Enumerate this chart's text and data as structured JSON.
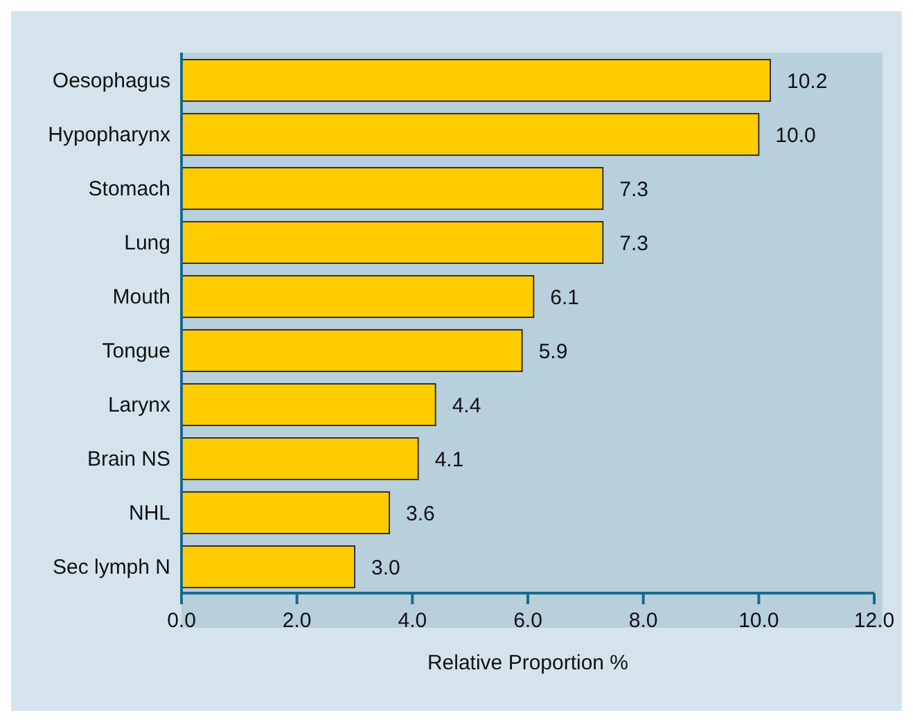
{
  "chart_data": {
    "type": "bar",
    "orientation": "horizontal",
    "xlabel": "Relative Proportion %",
    "categories": [
      "Oesophagus",
      "Hypopharynx",
      "Stomach",
      "Lung",
      "Mouth",
      "Tongue",
      "Larynx",
      "Brain NS",
      "NHL",
      "Sec lymph N"
    ],
    "values": [
      10.2,
      10.0,
      7.3,
      7.3,
      6.1,
      5.9,
      4.4,
      4.1,
      3.6,
      3.0
    ],
    "value_labels": [
      "10.2",
      "10.0",
      "7.3",
      "7.3",
      "6.1",
      "5.9",
      "4.4",
      "4.1",
      "3.6",
      "3.0"
    ],
    "color": "#ffcc00",
    "xlim": [
      0,
      12
    ],
    "xticks": [
      {
        "value": 0,
        "label": "0.0"
      },
      {
        "value": 2,
        "label": "2.0"
      },
      {
        "value": 4,
        "label": "4.0"
      },
      {
        "value": 6,
        "label": "6.0"
      },
      {
        "value": 8,
        "label": "8.0"
      },
      {
        "value": 10,
        "label": "10.0"
      },
      {
        "value": 12,
        "label": "12.0"
      }
    ],
    "grid": false,
    "legend": false
  }
}
